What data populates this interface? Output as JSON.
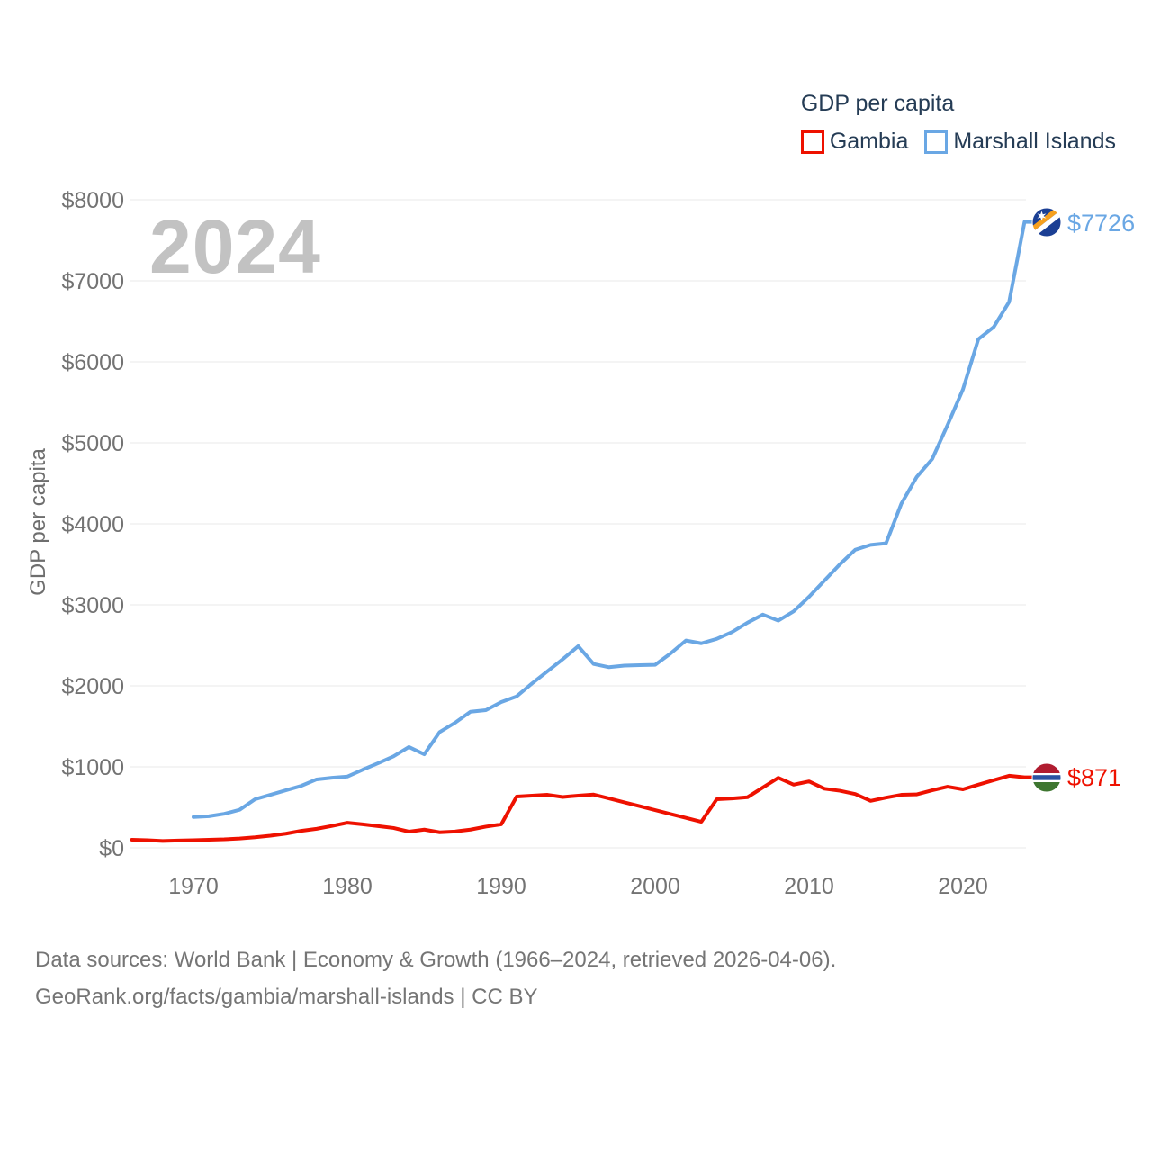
{
  "legend": {
    "title": "GDP per capita",
    "items": [
      {
        "label": "Gambia",
        "color": "#ee1100"
      },
      {
        "label": "Marshall Islands",
        "color": "#6aa7e4"
      }
    ]
  },
  "watermark_year": "2024",
  "end_labels": [
    {
      "series": "Marshall Islands",
      "value_label": "$7726",
      "color": "#6aa7e4",
      "icon": "marshall-islands-flag-icon"
    },
    {
      "series": "Gambia",
      "value_label": "$871",
      "color": "#ee1100",
      "icon": "gambia-flag-icon"
    }
  ],
  "footer": {
    "line1": "Data sources: World Bank | Economy & Growth (1966–2024, retrieved 2026-04-06).",
    "line2": "GeoRank.org/facts/gambia/marshall-islands | CC BY"
  },
  "chart_data": {
    "type": "line",
    "title": "GDP per capita",
    "ylabel": "GDP per capita",
    "xlabel": "",
    "ylim": [
      0,
      8000
    ],
    "grid": "horizontal",
    "legend_position": "top-right",
    "y_ticks": [
      0,
      1000,
      2000,
      3000,
      4000,
      5000,
      6000,
      7000,
      8000
    ],
    "y_tick_labels": [
      "$0",
      "$1000",
      "$2000",
      "$3000",
      "$4000",
      "$5000",
      "$6000",
      "$7000",
      "$8000"
    ],
    "x_ticks": [
      1970,
      1980,
      1990,
      2000,
      2010,
      2020
    ],
    "x_tick_labels": [
      "1970",
      "1980",
      "1990",
      "2000",
      "2010",
      "2020"
    ],
    "gridline_color": "#e8e8e8",
    "tick_color": "#737373",
    "series": [
      {
        "name": "Gambia",
        "color": "#ee1100",
        "years": [
          1966,
          1967,
          1968,
          1969,
          1970,
          1971,
          1972,
          1973,
          1974,
          1975,
          1976,
          1977,
          1978,
          1979,
          1980,
          1981,
          1982,
          1983,
          1984,
          1985,
          1986,
          1987,
          1988,
          1989,
          1990,
          1991,
          1992,
          1993,
          1994,
          1995,
          1996,
          1997,
          1998,
          1999,
          2000,
          2001,
          2002,
          2003,
          2004,
          2005,
          2006,
          2007,
          2008,
          2009,
          2010,
          2011,
          2012,
          2013,
          2014,
          2015,
          2016,
          2017,
          2018,
          2019,
          2020,
          2021,
          2022,
          2023,
          2024
        ],
        "values": [
          100,
          95,
          85,
          90,
          95,
          100,
          105,
          115,
          130,
          150,
          175,
          210,
          235,
          270,
          310,
          290,
          268,
          245,
          200,
          225,
          192,
          202,
          225,
          262,
          290,
          633,
          645,
          655,
          628,
          645,
          658,
          610,
          562,
          514,
          466,
          418,
          370,
          322,
          600,
          610,
          625,
          745,
          865,
          780,
          820,
          730,
          705,
          665,
          580,
          620,
          655,
          660,
          710,
          755,
          722,
          780,
          835,
          890,
          871
        ]
      },
      {
        "name": "Marshall Islands",
        "color": "#6aa7e4",
        "years": [
          1970,
          1971,
          1972,
          1973,
          1974,
          1975,
          1976,
          1977,
          1978,
          1979,
          1980,
          1981,
          1982,
          1983,
          1984,
          1985,
          1986,
          1987,
          1988,
          1989,
          1990,
          1991,
          1992,
          1993,
          1994,
          1995,
          1996,
          1997,
          1998,
          1999,
          2000,
          2001,
          2002,
          2003,
          2004,
          2005,
          2006,
          2007,
          2008,
          2009,
          2010,
          2011,
          2012,
          2013,
          2014,
          2015,
          2016,
          2017,
          2018,
          2019,
          2020,
          2021,
          2022,
          2023,
          2024
        ],
        "values": [
          380,
          390,
          420,
          470,
          600,
          655,
          710,
          765,
          845,
          865,
          880,
          965,
          1045,
          1130,
          1245,
          1155,
          1430,
          1545,
          1680,
          1700,
          1800,
          1870,
          2030,
          2180,
          2330,
          2490,
          2270,
          2230,
          2250,
          2255,
          2260,
          2400,
          2560,
          2525,
          2580,
          2665,
          2780,
          2880,
          2805,
          2920,
          3100,
          3300,
          3500,
          3680,
          3740,
          3760,
          4250,
          4580,
          4800,
          5220,
          5660,
          6280,
          6430,
          6740,
          7726
        ]
      }
    ]
  }
}
